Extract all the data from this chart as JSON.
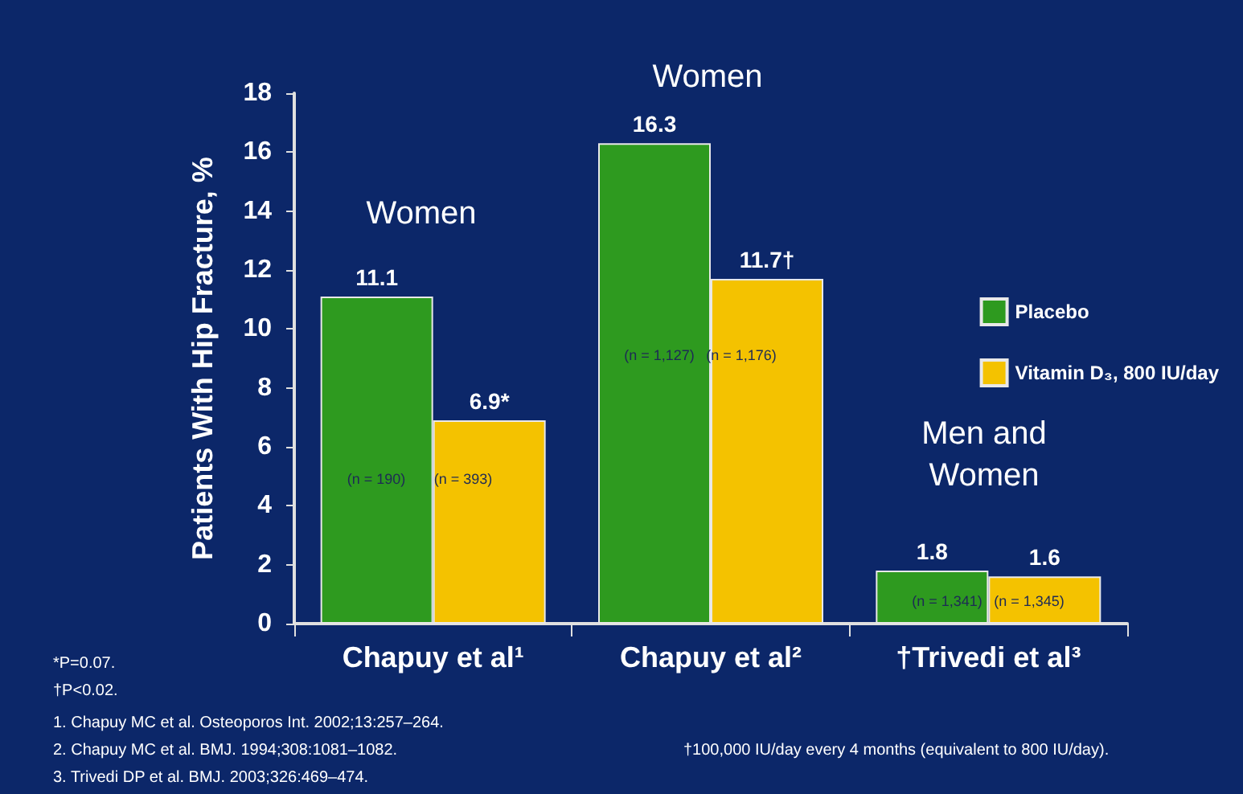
{
  "chart_data": {
    "type": "bar",
    "ylabel": "Patients With Hip Fracture, %",
    "categories": [
      "Chapuy et al¹",
      "Chapuy et al²",
      "†Trivedi et al³"
    ],
    "series": [
      {
        "name": "Placebo",
        "color": "#2e9a1f",
        "values": [
          11.1,
          16.3,
          1.8
        ],
        "value_labels": [
          "11.1",
          "16.3",
          "1.8"
        ]
      },
      {
        "name": "Vitamin D₃, 800 IU/day",
        "color": "#f4c200",
        "values": [
          6.9,
          11.7,
          1.6
        ],
        "value_labels": [
          "6.9*",
          "11.7†",
          "1.6"
        ]
      }
    ],
    "ylim": [
      0,
      18
    ],
    "yticks": [
      0,
      2,
      4,
      6,
      8,
      10,
      12,
      14,
      16,
      18
    ],
    "grid": false,
    "legend": "right",
    "annotations": [
      "Women",
      "Women",
      "Men and Women",
      "(n = 190)",
      "(n = 393)",
      "(n = 1,127)",
      "(n = 1,176)",
      "(n = 1,341)",
      "(n = 1,345)",
      "*P=0.07.",
      "†P<0.02.",
      "1. Chapuy MC et al. Osteoporos Int. 2002;13:257–264.",
      "2. Chapuy MC et al. BMJ. 1994;308:1081–1082.",
      "3. Trivedi DP et al. BMJ. 2003;326:469–474.",
      "†100,000 IU/day every 4 months (equivalent to 800 IU/day)."
    ]
  }
}
